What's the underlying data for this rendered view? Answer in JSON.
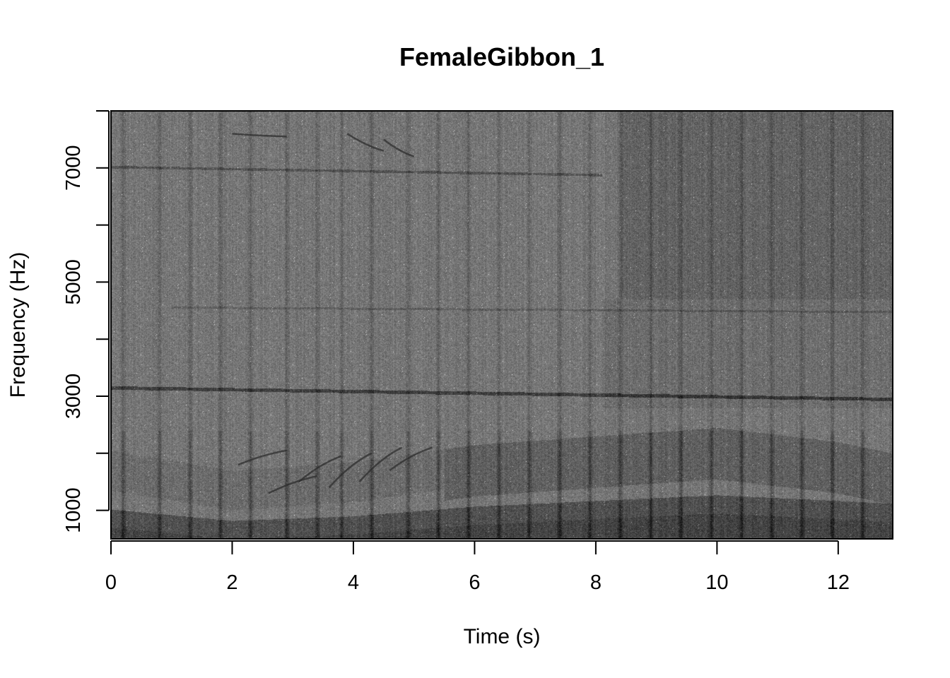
{
  "chart_data": {
    "type": "heatmap",
    "title": "FemaleGibbon_1",
    "xlabel": "Time (s)",
    "ylabel": "Frequency (Hz)",
    "xlim": [
      0,
      12.9
    ],
    "ylim": [
      500,
      8000
    ],
    "x_ticks": [
      0,
      2,
      4,
      6,
      8,
      10,
      12
    ],
    "x_tick_labels": [
      "0",
      "2",
      "4",
      "6",
      "8",
      "10",
      "12"
    ],
    "y_ticks": [
      1000,
      2000,
      3000,
      4000,
      5000,
      6000,
      7000,
      8000
    ],
    "y_tick_labels": [
      "1000",
      "",
      "3000",
      "",
      "5000",
      "",
      "7000",
      ""
    ],
    "colormap": "grayscale",
    "grid": false,
    "features": {
      "tone_3000": {
        "from": [
          0,
          3150
        ],
        "to": [
          12.9,
          2950
        ]
      },
      "tone_7000": {
        "from": [
          0,
          7020
        ],
        "to": [
          8.1,
          6880
        ]
      },
      "tone_4500": {
        "from": [
          1.0,
          4560
        ],
        "to": [
          12.9,
          4480
        ]
      },
      "fundamental_band": [
        [
          0,
          900
        ],
        [
          2,
          700
        ],
        [
          4,
          780
        ],
        [
          6,
          950
        ],
        [
          8,
          1050
        ],
        [
          10,
          1150
        ],
        [
          12,
          1050
        ],
        [
          12.9,
          1000
        ]
      ],
      "harmonic_band": [
        [
          0,
          2050
        ],
        [
          2,
          1700
        ],
        [
          4,
          1850
        ],
        [
          6,
          2150
        ],
        [
          8,
          2300
        ],
        [
          10,
          2450
        ],
        [
          12,
          2200
        ],
        [
          12.9,
          2000
        ]
      ],
      "call_onsets": [
        0.2,
        0.8,
        1.3,
        1.8,
        2.3,
        2.9,
        3.4,
        3.8,
        4.3,
        4.9,
        5.4,
        5.9,
        6.4,
        6.9,
        7.4,
        7.9,
        8.4,
        8.9,
        9.4,
        9.9,
        10.4,
        10.9,
        11.4,
        11.9,
        12.4
      ]
    }
  }
}
